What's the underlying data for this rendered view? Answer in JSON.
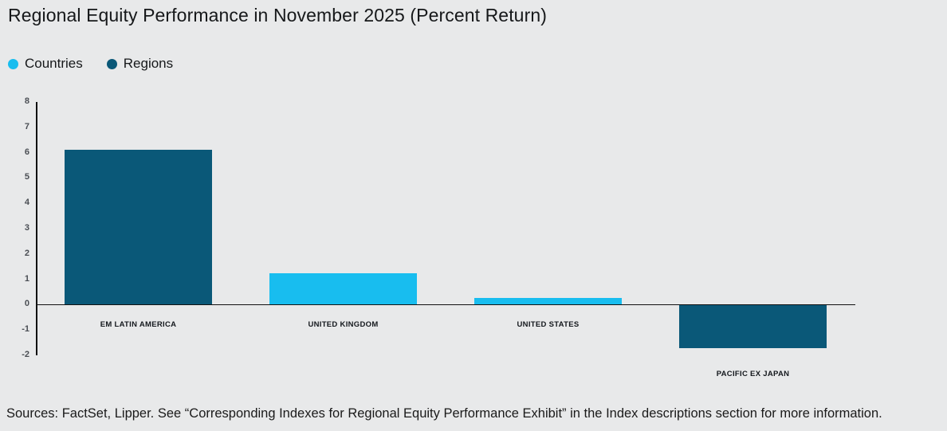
{
  "chart_data": {
    "type": "bar",
    "title": "Regional Equity Performance in November 2025 (Percent Return)",
    "categories": [
      "EM LATIN AMERICA",
      "UNITED KINGDOM",
      "UNITED STATES",
      "PACIFIC EX JAPAN"
    ],
    "values": [
      6.1,
      1.25,
      0.25,
      -1.7
    ],
    "series_membership": [
      "Regions",
      "Countries",
      "Countries",
      "Regions"
    ],
    "legend": [
      {
        "label": "Countries",
        "color": "#18bdef"
      },
      {
        "label": "Regions",
        "color": "#0a5878"
      }
    ],
    "legend_position": "top-left",
    "xlabel": "",
    "ylabel": "",
    "ylim": [
      -2,
      8
    ],
    "ytick_step": 1,
    "yticks": [
      8,
      7,
      6,
      5,
      4,
      3,
      2,
      1,
      0,
      -1,
      -2
    ],
    "grid": false,
    "colors": {
      "axis": "#111111",
      "tick_text": "#4a4e54",
      "background": "#e8e9ea"
    }
  },
  "source_note": "Sources: FactSet, Lipper. See “Corresponding Indexes for Regional Equity Performance Exhibit” in the Index descriptions section for more information."
}
